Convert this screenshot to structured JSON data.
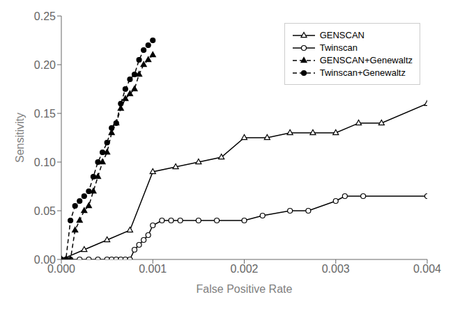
{
  "chart_data": {
    "type": "line",
    "xlabel": "False Positive Rate",
    "ylabel": "Sensitivity",
    "xlim": [
      0,
      0.004
    ],
    "ylim": [
      0,
      0.25
    ],
    "xticks": [
      {
        "value": 0.0,
        "label": "0.000"
      },
      {
        "value": 0.001,
        "label": "0.001"
      },
      {
        "value": 0.002,
        "label": "0.002"
      },
      {
        "value": 0.003,
        "label": "0.003"
      },
      {
        "value": 0.004,
        "label": "0.004"
      }
    ],
    "yticks": [
      {
        "value": 0.0,
        "label": "0.00"
      },
      {
        "value": 0.05,
        "label": "0.05"
      },
      {
        "value": 0.1,
        "label": "0.10"
      },
      {
        "value": 0.15,
        "label": "0.15"
      },
      {
        "value": 0.2,
        "label": "0.20"
      },
      {
        "value": 0.25,
        "label": "0.25"
      }
    ],
    "grid": false,
    "legend": "upper right",
    "series": [
      {
        "name": "GENSCAN",
        "color": "#000000",
        "marker": "triangle-open",
        "line_style": "solid",
        "x": [
          0.0,
          0.00025,
          0.0005,
          0.00075,
          0.001,
          0.00125,
          0.0015,
          0.00175,
          0.002,
          0.00225,
          0.0025,
          0.00275,
          0.003,
          0.00325,
          0.0035,
          0.004
        ],
        "values": [
          0.0,
          0.01,
          0.02,
          0.03,
          0.09,
          0.095,
          0.1,
          0.105,
          0.125,
          0.125,
          0.13,
          0.13,
          0.13,
          0.14,
          0.14,
          0.16
        ]
      },
      {
        "name": "Twinscan",
        "color": "#000000",
        "marker": "circle-open",
        "line_style": "solid",
        "x": [
          0.0,
          0.0001,
          0.0002,
          0.0003,
          0.0004,
          0.0005,
          0.00055,
          0.0006,
          0.00065,
          0.0007,
          0.00075,
          0.0008,
          0.00085,
          0.0009,
          0.00095,
          0.001,
          0.0011,
          0.0012,
          0.0013,
          0.0015,
          0.0017,
          0.002,
          0.0022,
          0.0025,
          0.0027,
          0.003,
          0.0031,
          0.0033,
          0.004
        ],
        "values": [
          0.0,
          0.0,
          0.0,
          0.0,
          0.0,
          0.0,
          0.0,
          0.0,
          0.0,
          0.0,
          0.0,
          0.01,
          0.015,
          0.02,
          0.025,
          0.035,
          0.04,
          0.04,
          0.04,
          0.04,
          0.04,
          0.04,
          0.045,
          0.05,
          0.05,
          0.06,
          0.065,
          0.065,
          0.065
        ]
      },
      {
        "name": "GENSCAN+Genewaltz",
        "color": "#000000",
        "marker": "triangle",
        "line_style": "dashed",
        "x": [
          0.0,
          5e-05,
          0.0001,
          0.00015,
          0.0002,
          0.00025,
          0.0003,
          0.00035,
          0.0004,
          0.00045,
          0.0005,
          0.00055,
          0.0006,
          0.00065,
          0.0007,
          0.00075,
          0.0008,
          0.00085,
          0.0009,
          0.00095,
          0.001
        ],
        "values": [
          0.0,
          0.0,
          0.0,
          0.03,
          0.04,
          0.05,
          0.055,
          0.07,
          0.085,
          0.1,
          0.11,
          0.13,
          0.14,
          0.155,
          0.165,
          0.17,
          0.175,
          0.19,
          0.2,
          0.205,
          0.21
        ]
      },
      {
        "name": "Twinscan+Genewaltz",
        "color": "#000000",
        "marker": "circle",
        "line_style": "dashed",
        "x": [
          0.0,
          5e-05,
          0.0001,
          0.00015,
          0.0002,
          0.00025,
          0.0003,
          0.00035,
          0.0004,
          0.00045,
          0.0005,
          0.00055,
          0.0006,
          0.00065,
          0.0007,
          0.00075,
          0.0008,
          0.00085,
          0.0009,
          0.00095,
          0.001
        ],
        "values": [
          0.0,
          0.0,
          0.04,
          0.055,
          0.06,
          0.065,
          0.07,
          0.085,
          0.1,
          0.11,
          0.12,
          0.135,
          0.14,
          0.16,
          0.175,
          0.185,
          0.19,
          0.205,
          0.215,
          0.22,
          0.225
        ]
      }
    ]
  }
}
